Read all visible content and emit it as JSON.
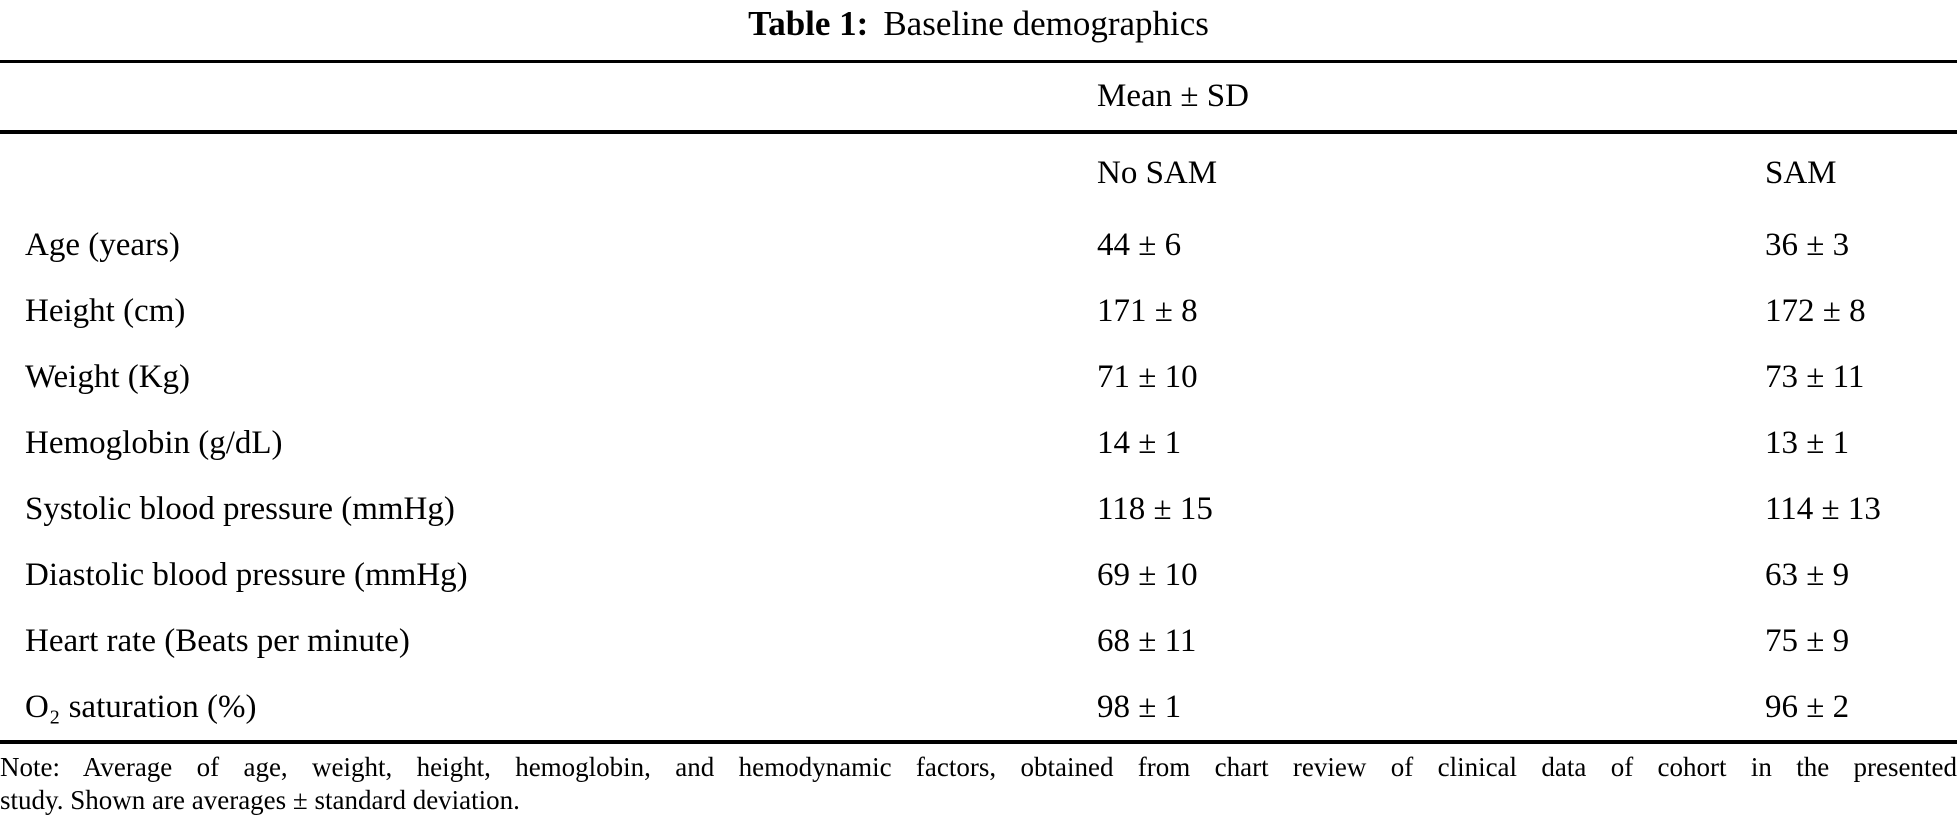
{
  "title": {
    "label": "Table 1:",
    "text": "Baseline demographics"
  },
  "table": {
    "group_header": "Mean ± SD",
    "col_headers": {
      "no_sam": "No SAM",
      "sam": "SAM"
    },
    "rows": [
      {
        "label": "Age (years)",
        "no_sam": "44 ± 6",
        "sam": "36 ± 3"
      },
      {
        "label": "Height (cm)",
        "no_sam": "171 ± 8",
        "sam": "172 ± 8"
      },
      {
        "label": "Weight (Kg)",
        "no_sam": "71 ± 10",
        "sam": "73 ± 11"
      },
      {
        "label": "Hemoglobin (g/dL)",
        "no_sam": "14 ± 1",
        "sam": "13 ± 1"
      },
      {
        "label": "Systolic blood pressure (mmHg)",
        "no_sam": "118 ± 15",
        "sam": "114 ± 13"
      },
      {
        "label": "Diastolic blood pressure (mmHg)",
        "no_sam": "69 ± 10",
        "sam": "63 ± 9"
      },
      {
        "label": "Heart rate (Beats per minute)",
        "no_sam": "68 ± 11",
        "sam": "75 ± 9"
      },
      {
        "label": "O₂ saturation (%)",
        "no_sam": "98 ± 1",
        "sam": "96 ± 2"
      }
    ]
  },
  "note": {
    "line1": "Note: Average of age, weight, height, hemoglobin, and hemodynamic factors, obtained from chart review of clinical data of cohort in the presented",
    "line2": "study. Shown are averages ± standard deviation."
  }
}
